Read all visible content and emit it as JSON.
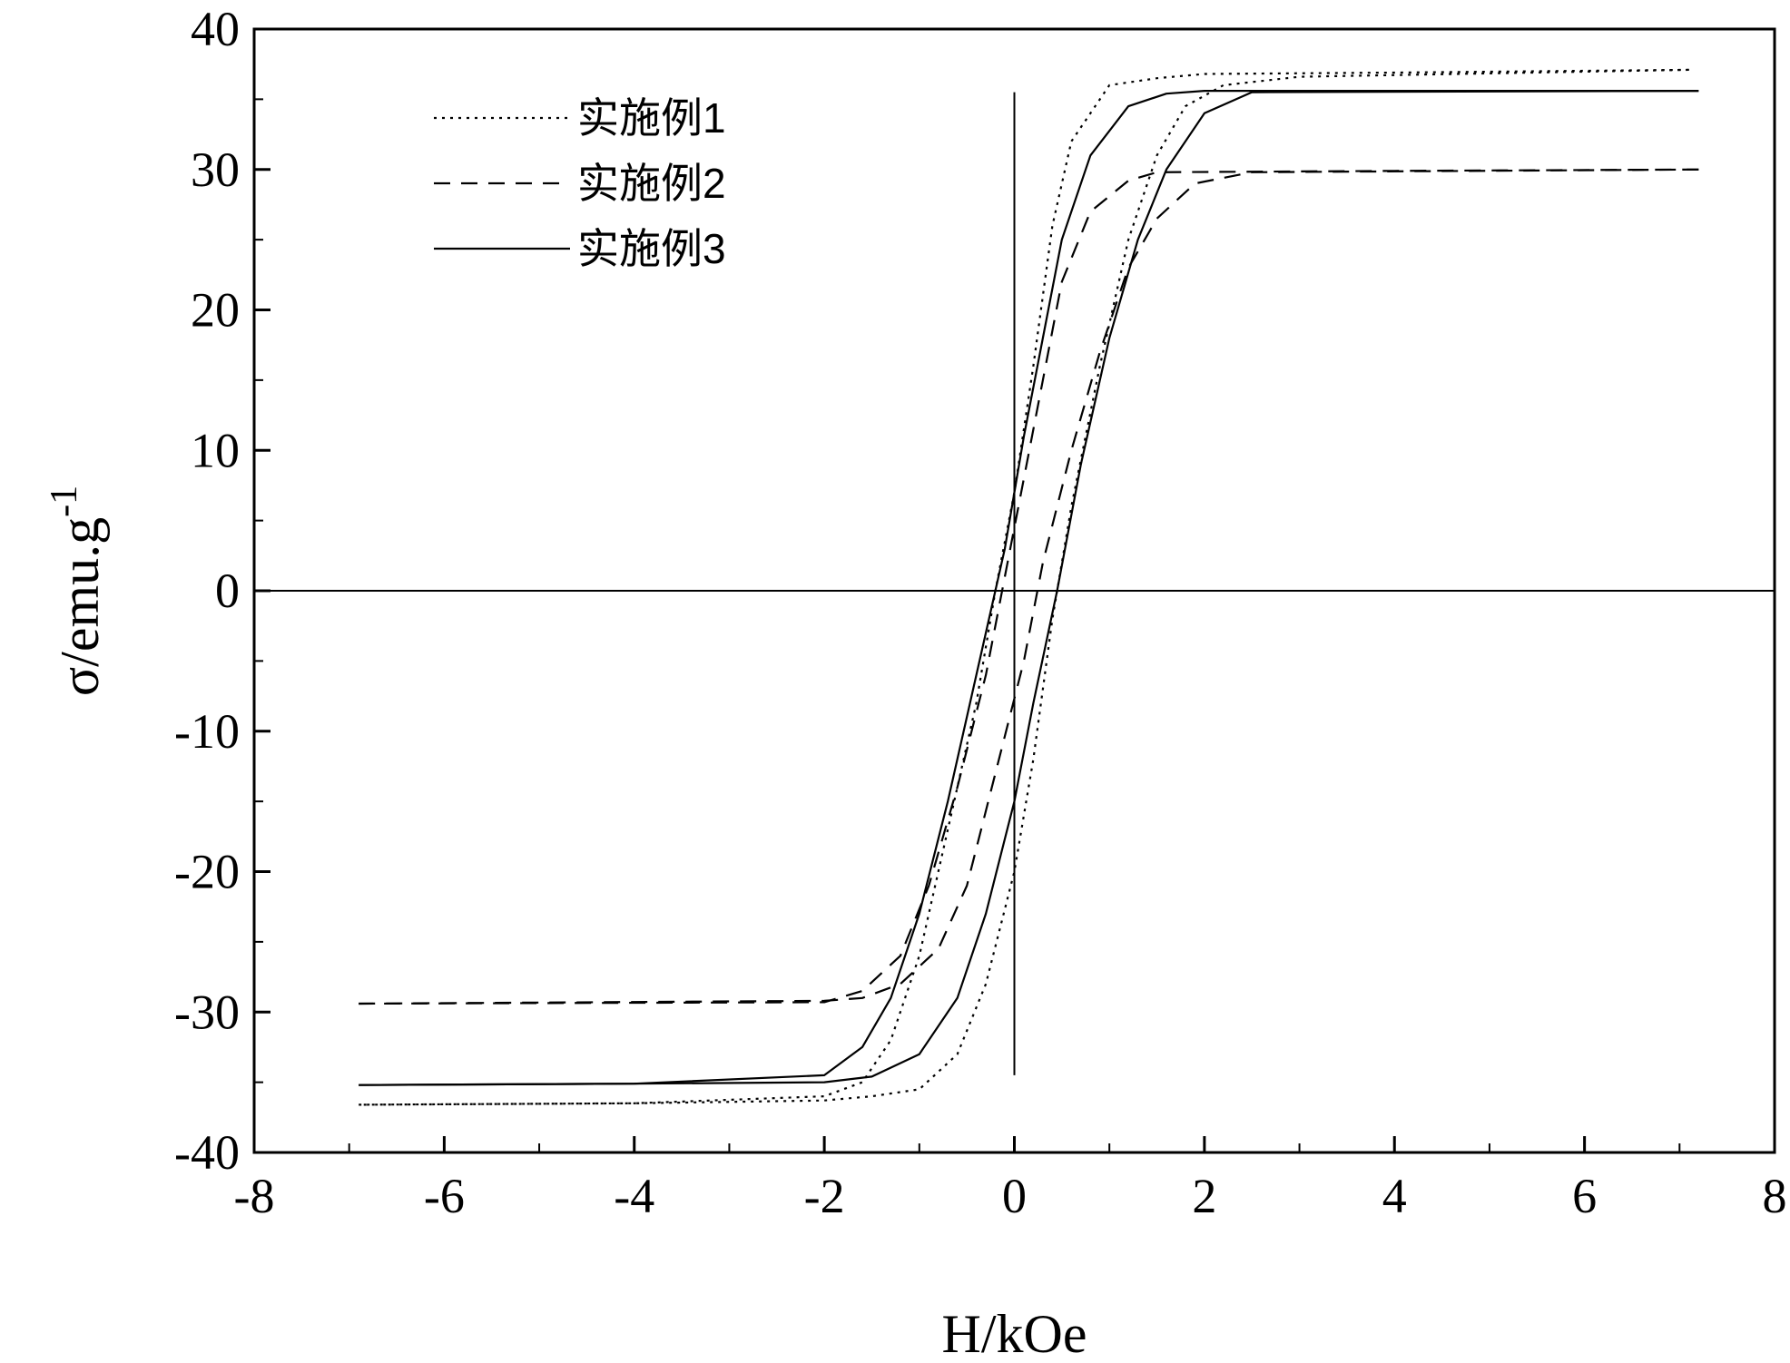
{
  "chart_data": {
    "type": "line",
    "title": "",
    "xlabel": "H/kOe",
    "ylabel": "σ/emu.g",
    "ylabel_superscript": "-1",
    "xlim": [
      -8,
      8
    ],
    "ylim": [
      -40,
      40
    ],
    "x_ticks": [
      -8,
      -6,
      -4,
      -2,
      0,
      2,
      4,
      6,
      8
    ],
    "y_ticks": [
      -40,
      -30,
      -20,
      -10,
      0,
      10,
      20,
      30,
      40
    ],
    "x_tick_labels": [
      "-8",
      "-6",
      "-4",
      "-2",
      "0",
      "2",
      "4",
      "6",
      "8"
    ],
    "y_tick_labels": [
      "-40",
      "-30",
      "-20",
      "-10",
      "0",
      "10",
      "20",
      "30",
      "40"
    ],
    "grid": false,
    "legend_position": "top-left",
    "series": [
      {
        "name": "实施例1",
        "style": "dotted",
        "descending": [
          [
            7.1,
            37.1
          ],
          [
            4,
            36.9
          ],
          [
            2,
            36.8
          ],
          [
            1.5,
            36.5
          ],
          [
            1,
            36.0
          ],
          [
            0.6,
            32.0
          ],
          [
            0.4,
            26.0
          ],
          [
            0.2,
            16.0
          ],
          [
            0,
            7.0
          ],
          [
            -0.2,
            0.0
          ],
          [
            -0.4,
            -8.0
          ],
          [
            -0.7,
            -17.0
          ],
          [
            -1.0,
            -26.0
          ],
          [
            -1.3,
            -32.0
          ],
          [
            -1.6,
            -35.0
          ],
          [
            -2,
            -36.0
          ],
          [
            -4,
            -36.5
          ],
          [
            -6.9,
            -36.6
          ]
        ],
        "ascending": [
          [
            -6.9,
            -36.6
          ],
          [
            -4,
            -36.5
          ],
          [
            -2,
            -36.3
          ],
          [
            -1.5,
            -36.0
          ],
          [
            -1,
            -35.5
          ],
          [
            -0.6,
            -33.0
          ],
          [
            -0.3,
            -28.0
          ],
          [
            0,
            -20.0
          ],
          [
            0.2,
            -12.0
          ],
          [
            0.4,
            -2.0
          ],
          [
            0.6,
            6.0
          ],
          [
            0.9,
            16.0
          ],
          [
            1.2,
            25.0
          ],
          [
            1.5,
            31.0
          ],
          [
            1.8,
            34.5
          ],
          [
            2.2,
            36.0
          ],
          [
            3,
            36.6
          ],
          [
            7.1,
            37.1
          ]
        ]
      },
      {
        "name": "实施例2",
        "style": "dashed",
        "descending": [
          [
            7.2,
            30.0
          ],
          [
            4,
            29.9
          ],
          [
            1.5,
            29.8
          ],
          [
            1.2,
            29.2
          ],
          [
            0.8,
            27.0
          ],
          [
            0.5,
            22.0
          ],
          [
            0.3,
            15.0
          ],
          [
            0.1,
            8.0
          ],
          [
            -0.1,
            1.0
          ],
          [
            -0.3,
            -6.0
          ],
          [
            -0.6,
            -14.0
          ],
          [
            -0.9,
            -21.0
          ],
          [
            -1.2,
            -26.0
          ],
          [
            -1.6,
            -28.5
          ],
          [
            -2,
            -29.3
          ],
          [
            -6.9,
            -29.4
          ]
        ],
        "ascending": [
          [
            -6.9,
            -29.4
          ],
          [
            -2,
            -29.2
          ],
          [
            -1.6,
            -29.0
          ],
          [
            -1.2,
            -28.0
          ],
          [
            -0.8,
            -25.5
          ],
          [
            -0.5,
            -21.0
          ],
          [
            -0.2,
            -13.0
          ],
          [
            0.1,
            -5.0
          ],
          [
            0.3,
            2.0
          ],
          [
            0.6,
            10.0
          ],
          [
            0.9,
            17.0
          ],
          [
            1.2,
            23.0
          ],
          [
            1.5,
            26.5
          ],
          [
            1.9,
            29.0
          ],
          [
            2.5,
            29.8
          ],
          [
            7.2,
            30.0
          ]
        ]
      },
      {
        "name": "实施例3",
        "style": "solid",
        "descending": [
          [
            7.2,
            35.6
          ],
          [
            4,
            35.6
          ],
          [
            2,
            35.6
          ],
          [
            1.6,
            35.4
          ],
          [
            1.2,
            34.5
          ],
          [
            0.8,
            31.0
          ],
          [
            0.5,
            25.0
          ],
          [
            0.3,
            18.0
          ],
          [
            0.1,
            11.0
          ],
          [
            -0.1,
            3.0
          ],
          [
            -0.4,
            -6.0
          ],
          [
            -0.7,
            -15.0
          ],
          [
            -1.0,
            -23.0
          ],
          [
            -1.3,
            -29.0
          ],
          [
            -1.6,
            -32.5
          ],
          [
            -2,
            -34.5
          ],
          [
            -4,
            -35.1
          ],
          [
            -6.9,
            -35.2
          ]
        ],
        "ascending": [
          [
            -6.9,
            -35.2
          ],
          [
            -4,
            -35.1
          ],
          [
            -2,
            -35.0
          ],
          [
            -1.5,
            -34.6
          ],
          [
            -1.0,
            -33.0
          ],
          [
            -0.6,
            -29.0
          ],
          [
            -0.3,
            -23.0
          ],
          [
            0,
            -15.0
          ],
          [
            0.2,
            -8.0
          ],
          [
            0.45,
            0.0
          ],
          [
            0.7,
            9.0
          ],
          [
            1.0,
            18.0
          ],
          [
            1.3,
            25.0
          ],
          [
            1.6,
            30.0
          ],
          [
            2.0,
            34.0
          ],
          [
            2.5,
            35.5
          ],
          [
            7.2,
            35.6
          ]
        ]
      }
    ]
  }
}
